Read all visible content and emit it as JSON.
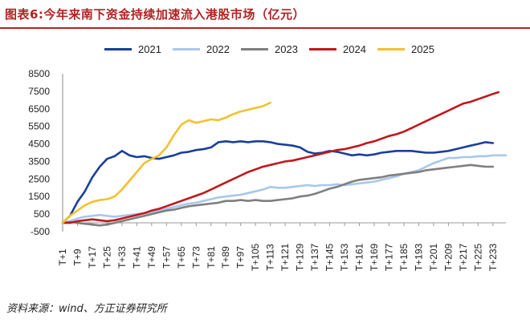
{
  "title": "图表6:今年来南下资金持续加速流入港股市场（亿元）",
  "source": "资料来源：wind、方正证券研究所",
  "colors": {
    "2021": "#1a3f9a",
    "2022": "#a9c7ea",
    "2023": "#7f7f7f",
    "2024": "#c0181c",
    "2025": "#f2c12e",
    "title": "#b22222"
  },
  "chart_data": {
    "type": "line",
    "title": "",
    "xlabel": "",
    "ylabel": "",
    "ylim": [
      -500,
      8500
    ],
    "yticks": [
      "-500",
      "500",
      "1500",
      "2500",
      "3500",
      "4500",
      "5500",
      "6500",
      "7500",
      "8500"
    ],
    "xtick_labels": [
      "T+1",
      "T+9",
      "T+17",
      "T+25",
      "T+33",
      "T+41",
      "T+49",
      "T+57",
      "T+65",
      "T+73",
      "T+81",
      "T+89",
      "T+97",
      "T+105",
      "T+113",
      "T+121",
      "T+129",
      "T+137",
      "T+145",
      "T+153",
      "T+161",
      "T+169",
      "T+177",
      "T+185",
      "T+193",
      "T+201",
      "T+209",
      "T+217",
      "T+225",
      "T+233"
    ],
    "xlim": [
      1,
      240
    ],
    "legend_position": "top",
    "series": [
      {
        "name": "2021",
        "points": [
          [
            1,
            0
          ],
          [
            5,
            400
          ],
          [
            9,
            1200
          ],
          [
            13,
            1800
          ],
          [
            17,
            2600
          ],
          [
            21,
            3200
          ],
          [
            25,
            3650
          ],
          [
            29,
            3800
          ],
          [
            33,
            4100
          ],
          [
            37,
            3850
          ],
          [
            41,
            3750
          ],
          [
            45,
            3800
          ],
          [
            49,
            3700
          ],
          [
            53,
            3650
          ],
          [
            57,
            3750
          ],
          [
            61,
            3850
          ],
          [
            65,
            4000
          ],
          [
            69,
            4050
          ],
          [
            73,
            4150
          ],
          [
            77,
            4200
          ],
          [
            81,
            4300
          ],
          [
            85,
            4600
          ],
          [
            89,
            4650
          ],
          [
            93,
            4600
          ],
          [
            97,
            4650
          ],
          [
            101,
            4600
          ],
          [
            105,
            4650
          ],
          [
            109,
            4650
          ],
          [
            113,
            4600
          ],
          [
            117,
            4500
          ],
          [
            121,
            4450
          ],
          [
            125,
            4400
          ],
          [
            129,
            4300
          ],
          [
            133,
            4050
          ],
          [
            137,
            3950
          ],
          [
            141,
            4000
          ],
          [
            145,
            4100
          ],
          [
            149,
            4050
          ],
          [
            153,
            3950
          ],
          [
            157,
            3850
          ],
          [
            161,
            3900
          ],
          [
            165,
            3850
          ],
          [
            169,
            3900
          ],
          [
            173,
            4000
          ],
          [
            177,
            4050
          ],
          [
            181,
            4100
          ],
          [
            185,
            4100
          ],
          [
            189,
            4100
          ],
          [
            193,
            4050
          ],
          [
            197,
            4000
          ],
          [
            201,
            4000
          ],
          [
            205,
            4050
          ],
          [
            209,
            4100
          ],
          [
            213,
            4200
          ],
          [
            217,
            4300
          ],
          [
            221,
            4400
          ],
          [
            225,
            4500
          ],
          [
            229,
            4600
          ],
          [
            233,
            4550
          ]
        ]
      },
      {
        "name": "2022",
        "points": [
          [
            1,
            0
          ],
          [
            5,
            100
          ],
          [
            9,
            250
          ],
          [
            13,
            350
          ],
          [
            17,
            400
          ],
          [
            21,
            450
          ],
          [
            25,
            400
          ],
          [
            29,
            350
          ],
          [
            33,
            400
          ],
          [
            37,
            450
          ],
          [
            41,
            500
          ],
          [
            45,
            550
          ],
          [
            49,
            600
          ],
          [
            53,
            700
          ],
          [
            57,
            800
          ],
          [
            61,
            900
          ],
          [
            65,
            1000
          ],
          [
            69,
            1100
          ],
          [
            73,
            1150
          ],
          [
            77,
            1250
          ],
          [
            81,
            1350
          ],
          [
            85,
            1450
          ],
          [
            89,
            1500
          ],
          [
            93,
            1550
          ],
          [
            97,
            1600
          ],
          [
            101,
            1700
          ],
          [
            105,
            1800
          ],
          [
            109,
            1900
          ],
          [
            113,
            2050
          ],
          [
            117,
            2000
          ],
          [
            121,
            2000
          ],
          [
            125,
            2050
          ],
          [
            129,
            2100
          ],
          [
            133,
            2150
          ],
          [
            137,
            2100
          ],
          [
            141,
            2150
          ],
          [
            145,
            2150
          ],
          [
            149,
            2200
          ],
          [
            153,
            2150
          ],
          [
            157,
            2200
          ],
          [
            161,
            2250
          ],
          [
            165,
            2300
          ],
          [
            169,
            2350
          ],
          [
            173,
            2450
          ],
          [
            177,
            2550
          ],
          [
            181,
            2650
          ],
          [
            185,
            2800
          ],
          [
            189,
            2900
          ],
          [
            193,
            3000
          ],
          [
            197,
            3200
          ],
          [
            201,
            3400
          ],
          [
            205,
            3550
          ],
          [
            209,
            3700
          ],
          [
            213,
            3700
          ],
          [
            217,
            3750
          ],
          [
            221,
            3750
          ],
          [
            225,
            3800
          ],
          [
            229,
            3800
          ],
          [
            233,
            3850
          ],
          [
            240,
            3850
          ]
        ]
      },
      {
        "name": "2023",
        "points": [
          [
            1,
            0
          ],
          [
            5,
            50
          ],
          [
            9,
            0
          ],
          [
            13,
            -50
          ],
          [
            17,
            -100
          ],
          [
            21,
            -150
          ],
          [
            25,
            -100
          ],
          [
            29,
            0
          ],
          [
            33,
            100
          ],
          [
            37,
            200
          ],
          [
            41,
            300
          ],
          [
            45,
            400
          ],
          [
            49,
            500
          ],
          [
            53,
            600
          ],
          [
            57,
            700
          ],
          [
            61,
            750
          ],
          [
            65,
            850
          ],
          [
            69,
            950
          ],
          [
            73,
            1000
          ],
          [
            77,
            1050
          ],
          [
            81,
            1100
          ],
          [
            85,
            1150
          ],
          [
            89,
            1250
          ],
          [
            93,
            1250
          ],
          [
            97,
            1300
          ],
          [
            101,
            1250
          ],
          [
            105,
            1300
          ],
          [
            109,
            1250
          ],
          [
            113,
            1250
          ],
          [
            117,
            1300
          ],
          [
            121,
            1350
          ],
          [
            125,
            1400
          ],
          [
            129,
            1500
          ],
          [
            133,
            1550
          ],
          [
            137,
            1650
          ],
          [
            141,
            1800
          ],
          [
            145,
            1950
          ],
          [
            149,
            2050
          ],
          [
            153,
            2200
          ],
          [
            157,
            2350
          ],
          [
            161,
            2450
          ],
          [
            165,
            2500
          ],
          [
            169,
            2550
          ],
          [
            173,
            2600
          ],
          [
            177,
            2700
          ],
          [
            181,
            2750
          ],
          [
            185,
            2800
          ],
          [
            189,
            2850
          ],
          [
            193,
            2900
          ],
          [
            197,
            3000
          ],
          [
            201,
            3050
          ],
          [
            205,
            3100
          ],
          [
            209,
            3150
          ],
          [
            213,
            3200
          ],
          [
            217,
            3250
          ],
          [
            221,
            3300
          ],
          [
            225,
            3250
          ],
          [
            229,
            3200
          ],
          [
            233,
            3200
          ]
        ]
      },
      {
        "name": "2024",
        "points": [
          [
            1,
            0
          ],
          [
            5,
            0
          ],
          [
            9,
            100
          ],
          [
            13,
            150
          ],
          [
            17,
            200
          ],
          [
            21,
            150
          ],
          [
            25,
            100
          ],
          [
            29,
            150
          ],
          [
            33,
            250
          ],
          [
            37,
            350
          ],
          [
            41,
            450
          ],
          [
            45,
            550
          ],
          [
            49,
            700
          ],
          [
            53,
            800
          ],
          [
            57,
            950
          ],
          [
            61,
            1100
          ],
          [
            65,
            1250
          ],
          [
            69,
            1400
          ],
          [
            73,
            1550
          ],
          [
            77,
            1700
          ],
          [
            81,
            1900
          ],
          [
            85,
            2100
          ],
          [
            89,
            2300
          ],
          [
            93,
            2500
          ],
          [
            97,
            2700
          ],
          [
            101,
            2900
          ],
          [
            105,
            3050
          ],
          [
            109,
            3200
          ],
          [
            113,
            3300
          ],
          [
            117,
            3400
          ],
          [
            121,
            3500
          ],
          [
            125,
            3550
          ],
          [
            129,
            3650
          ],
          [
            133,
            3750
          ],
          [
            137,
            3850
          ],
          [
            141,
            3950
          ],
          [
            145,
            4050
          ],
          [
            149,
            4150
          ],
          [
            153,
            4200
          ],
          [
            157,
            4300
          ],
          [
            161,
            4400
          ],
          [
            165,
            4550
          ],
          [
            169,
            4650
          ],
          [
            173,
            4800
          ],
          [
            177,
            4950
          ],
          [
            181,
            5050
          ],
          [
            185,
            5200
          ],
          [
            189,
            5400
          ],
          [
            193,
            5600
          ],
          [
            197,
            5800
          ],
          [
            201,
            6000
          ],
          [
            205,
            6200
          ],
          [
            209,
            6400
          ],
          [
            213,
            6600
          ],
          [
            217,
            6800
          ],
          [
            221,
            6900
          ],
          [
            225,
            7050
          ],
          [
            229,
            7200
          ],
          [
            233,
            7350
          ],
          [
            236,
            7450
          ]
        ]
      },
      {
        "name": "2025",
        "points": [
          [
            1,
            0
          ],
          [
            5,
            400
          ],
          [
            9,
            700
          ],
          [
            13,
            1000
          ],
          [
            17,
            1200
          ],
          [
            21,
            1300
          ],
          [
            25,
            1350
          ],
          [
            29,
            1500
          ],
          [
            33,
            1900
          ],
          [
            37,
            2400
          ],
          [
            41,
            2900
          ],
          [
            45,
            3400
          ],
          [
            49,
            3650
          ],
          [
            53,
            3850
          ],
          [
            57,
            4300
          ],
          [
            61,
            5000
          ],
          [
            65,
            5600
          ],
          [
            69,
            5850
          ],
          [
            73,
            5700
          ],
          [
            77,
            5800
          ],
          [
            81,
            5900
          ],
          [
            85,
            5850
          ],
          [
            89,
            6000
          ],
          [
            93,
            6200
          ],
          [
            97,
            6350
          ],
          [
            101,
            6450
          ],
          [
            105,
            6550
          ],
          [
            109,
            6650
          ],
          [
            113,
            6850
          ]
        ]
      }
    ]
  }
}
